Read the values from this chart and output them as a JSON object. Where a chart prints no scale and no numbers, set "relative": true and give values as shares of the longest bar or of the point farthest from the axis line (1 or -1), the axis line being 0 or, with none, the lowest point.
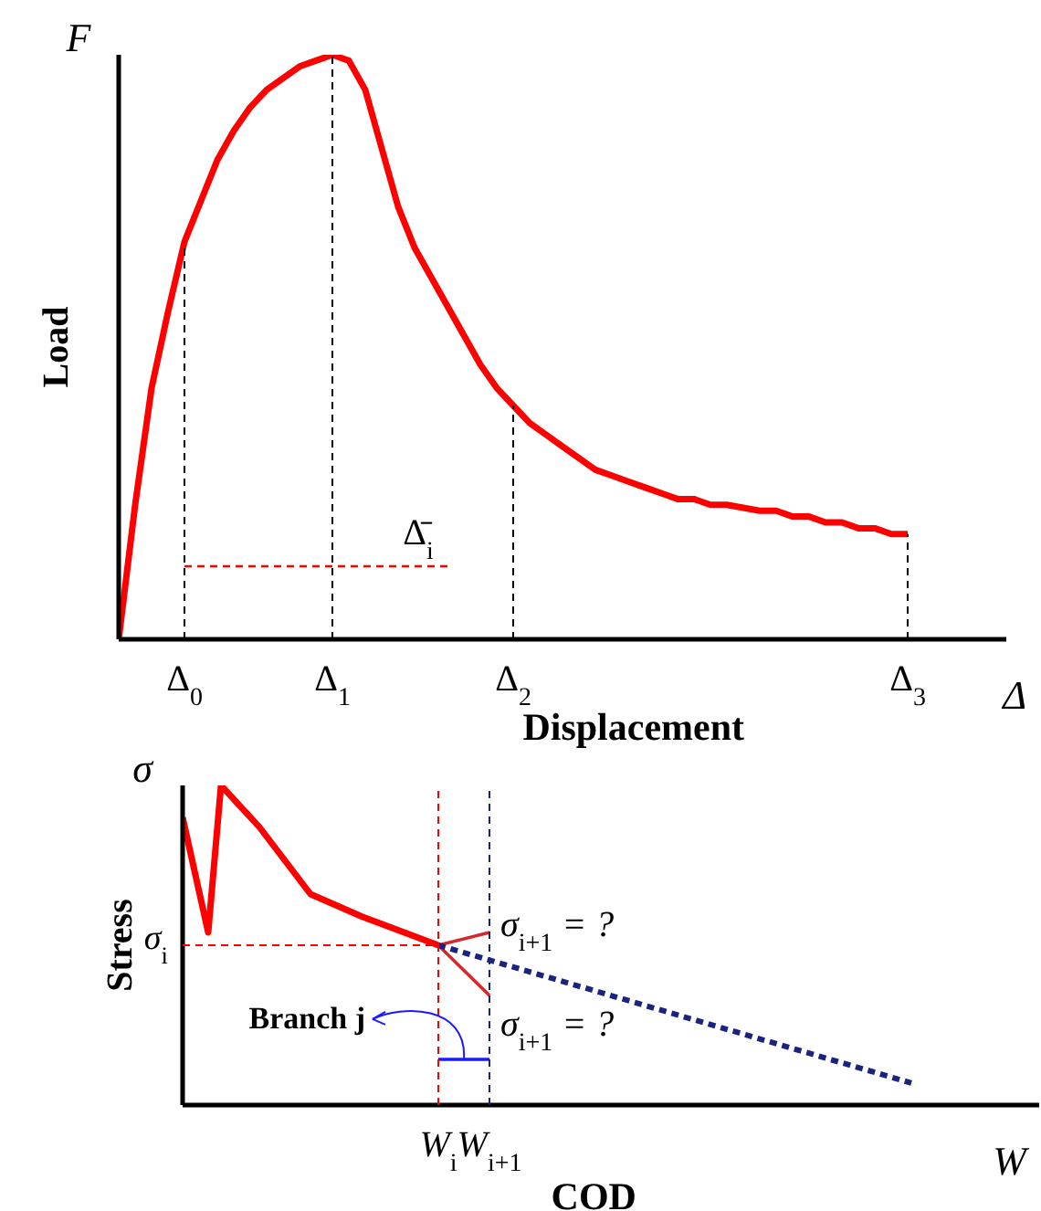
{
  "chart_data": [
    {
      "type": "line",
      "relative": true,
      "xlabel": "Displacement",
      "ylabel": "Load",
      "marker": "none",
      "line_style": "solid",
      "categories": [
        null,
        null,
        null,
        null,
        "Δ$_{0}$",
        null,
        null,
        null,
        null,
        null,
        null,
        null,
        null,
        "Δ$_{1}$",
        null,
        null,
        null,
        null,
        null,
        null,
        null,
        null,
        null,
        null,
        "Δ$_{2}$",
        null,
        null,
        null,
        null,
        null,
        null,
        null,
        null,
        null,
        null,
        null,
        null,
        null,
        null,
        null,
        null,
        null,
        null,
        null,
        null,
        null,
        null,
        null,
        "Δ$_{3}$",
        null,
        null,
        null,
        null,
        null,
        null
      ],
      "series": [
        {
          "color": "#ff0000",
          "values": [
            0,
            0.23,
            0.43,
            0.56,
            0.68,
            0.75,
            0.82,
            0.87,
            0.91,
            0.94,
            0.96,
            0.98,
            0.99,
            1,
            0.99,
            0.94,
            0.84,
            0.74,
            0.67,
            0.62,
            0.57,
            0.52,
            0.47,
            0.43,
            0.4,
            0.37,
            0.35,
            0.33,
            0.31,
            0.29,
            0.28,
            0.27,
            0.26,
            0.25,
            0.24,
            0.24,
            0.23,
            0.23,
            0.225,
            0.22,
            0.22,
            0.21,
            0.21,
            0.2,
            0.2,
            0.19,
            0.19,
            0.18,
            0.18,
            null,
            null,
            null,
            null,
            null,
            null
          ]
        },
        {
          "color": "#ff0000",
          "line_style": "dashed",
          "values": [
            null,
            null,
            null,
            null,
            0.125,
            null,
            null,
            null,
            null,
            null,
            null,
            null,
            null,
            null,
            null,
            null,
            null,
            null,
            null,
            null,
            0.125,
            null,
            null,
            null,
            null,
            null,
            null,
            null,
            null,
            null,
            null,
            null,
            null,
            null,
            null,
            null,
            null,
            null,
            null,
            null,
            null,
            null,
            null,
            null,
            null,
            null,
            null,
            null,
            null,
            null,
            null,
            null,
            null,
            null,
            null
          ]
        }
      ],
      "ref_lines": [
        {
          "axis": "x",
          "value": "Δ$_{0}$",
          "label": null,
          "line_style": "dashed",
          "color": "#000000"
        },
        {
          "axis": "x",
          "value": "Δ$_{1}$",
          "label": null,
          "line_style": "dashed",
          "color": "#000000"
        },
        {
          "axis": "x",
          "value": "Δ$_{2}$",
          "label": null,
          "line_style": "dashed",
          "color": "#000000"
        },
        {
          "axis": "x",
          "value": "Δ$_{3}$",
          "label": null,
          "line_style": "dashed",
          "color": "#000000"
        }
      ],
      "annotations": [
        "F",
        "Δ",
        "Δ̄$_{i}$"
      ]
    },
    {
      "type": "line",
      "relative": true,
      "xlabel": "COD",
      "ylabel": "Stress",
      "marker": "none",
      "line_style": "solid",
      "categories": [
        null,
        null,
        null,
        null,
        null,
        null,
        null,
        null,
        null,
        null,
        null,
        null,
        null,
        null,
        null,
        null,
        null,
        null,
        null,
        null,
        "W$_{i}$",
        null,
        null,
        null,
        "W$_{i+1}$",
        null,
        null,
        null,
        null,
        null,
        null,
        null,
        null,
        null,
        null,
        null,
        null,
        null,
        null,
        null,
        null,
        null,
        null,
        null,
        null,
        null,
        null,
        null,
        null,
        null,
        null,
        null,
        null,
        null,
        null,
        null,
        null,
        null,
        null,
        null,
        null,
        null,
        null,
        null,
        null,
        null,
        null,
        null
      ],
      "series": [
        {
          "color": "#ff0000",
          "values": [
            0.9,
            null,
            0.54,
            1,
            null,
            null,
            0.87,
            null,
            null,
            null,
            0.66,
            null,
            null,
            null,
            0.59,
            null,
            null,
            null,
            null,
            null,
            0.5,
            null,
            null,
            null,
            null,
            null,
            null,
            null,
            null,
            null,
            null,
            null,
            null,
            null,
            null,
            null,
            null,
            null,
            null,
            null,
            null,
            null,
            null,
            null,
            null,
            null,
            null,
            null,
            null,
            null,
            null,
            null,
            null,
            null,
            null,
            null,
            null,
            null,
            null,
            null,
            null,
            null,
            null,
            null,
            null,
            null,
            null,
            null
          ]
        },
        {
          "color": "#d62828",
          "values": [
            null,
            null,
            null,
            null,
            null,
            null,
            null,
            null,
            null,
            null,
            null,
            null,
            null,
            null,
            null,
            null,
            null,
            null,
            null,
            null,
            0.5,
            null,
            null,
            null,
            0.54,
            null,
            null,
            null,
            null,
            null,
            null,
            null,
            null,
            null,
            null,
            null,
            null,
            null,
            null,
            null,
            null,
            null,
            null,
            null,
            null,
            null,
            null,
            null,
            null,
            null,
            null,
            null,
            null,
            null,
            null,
            null,
            null,
            null,
            null,
            null,
            null,
            null,
            null,
            null,
            null,
            null,
            null,
            null
          ]
        },
        {
          "color": "#d62828",
          "values": [
            null,
            null,
            null,
            null,
            null,
            null,
            null,
            null,
            null,
            null,
            null,
            null,
            null,
            null,
            null,
            null,
            null,
            null,
            null,
            null,
            0.5,
            null,
            null,
            null,
            0.343,
            null,
            null,
            null,
            null,
            null,
            null,
            null,
            null,
            null,
            null,
            null,
            null,
            null,
            null,
            null,
            null,
            null,
            null,
            null,
            null,
            null,
            null,
            null,
            null,
            null,
            null,
            null,
            null,
            null,
            null,
            null,
            null,
            null,
            null,
            null,
            null,
            null,
            null,
            null,
            null,
            null,
            null,
            null
          ]
        },
        {
          "color": "#1a237e",
          "line_style": "dashed",
          "values": [
            null,
            null,
            null,
            null,
            null,
            null,
            null,
            null,
            null,
            null,
            null,
            null,
            null,
            null,
            null,
            null,
            null,
            null,
            null,
            null,
            0.5,
            null,
            null,
            null,
            null,
            null,
            null,
            null,
            null,
            null,
            null,
            null,
            null,
            null,
            null,
            null,
            null,
            null,
            null,
            null,
            null,
            null,
            null,
            null,
            null,
            null,
            null,
            null,
            null,
            null,
            null,
            null,
            null,
            null,
            null,
            null,
            null,
            0.069,
            null,
            null,
            null,
            null,
            null,
            null,
            null,
            null,
            null,
            null
          ]
        },
        {
          "color": "#1a1aff",
          "values": [
            null,
            null,
            null,
            null,
            null,
            null,
            null,
            null,
            null,
            null,
            null,
            null,
            null,
            null,
            null,
            null,
            null,
            null,
            null,
            null,
            0.143,
            null,
            null,
            null,
            0.143,
            null,
            null,
            null,
            null,
            null,
            null,
            null,
            null,
            null,
            null,
            null,
            null,
            null,
            null,
            null,
            null,
            null,
            null,
            null,
            null,
            null,
            null,
            null,
            null,
            null,
            null,
            null,
            null,
            null,
            null,
            null,
            null,
            null,
            null,
            null,
            null,
            null,
            null,
            null,
            null,
            null,
            null,
            null
          ]
        }
      ],
      "ref_lines": [
        {
          "axis": "y",
          "value": 0.5,
          "label": "σ$_{i}$",
          "line_style": "dashed",
          "color": "#ff0000"
        },
        {
          "axis": "x",
          "value": "W$_{i}$",
          "label": null,
          "line_style": "dashed",
          "color": "#ff0000"
        },
        {
          "axis": "x",
          "value": "W$_{i+1}$",
          "label": null,
          "line_style": "dashed",
          "color": "#1a237e"
        }
      ],
      "annotations": [
        "σ",
        "W",
        {
          "text": "σ$_{i+1}$ = ?",
          "x": "W$_{i+1}$",
          "y": 0.54
        },
        {
          "text": "σ$_{i+1}$ = ?",
          "x": "W$_{i+1}$",
          "y": 0.343
        },
        {
          "text": "Branch j",
          "x": "W$_{i}$",
          "y": 0.143
        }
      ]
    }
  ]
}
